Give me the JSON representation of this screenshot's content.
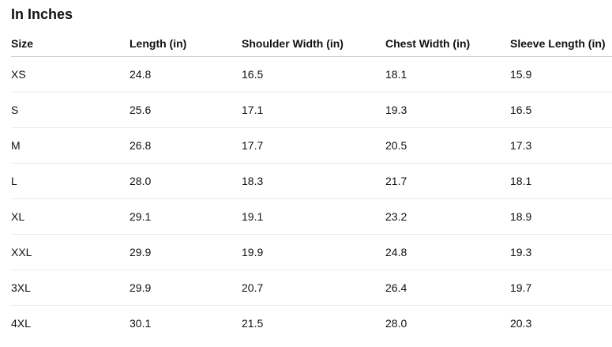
{
  "header": {
    "title": "In Inches"
  },
  "table": {
    "columns": [
      "Size",
      "Length (in)",
      "Shoulder Width (in)",
      "Chest Width (in)",
      "Sleeve Length (in)"
    ],
    "rows": [
      [
        "XS",
        "24.8",
        "16.5",
        "18.1",
        "15.9"
      ],
      [
        "S",
        "25.6",
        "17.1",
        "19.3",
        "16.5"
      ],
      [
        "M",
        "26.8",
        "17.7",
        "20.5",
        "17.3"
      ],
      [
        "L",
        "28.0",
        "18.3",
        "21.7",
        "18.1"
      ],
      [
        "XL",
        "29.1",
        "19.1",
        "23.2",
        "18.9"
      ],
      [
        "XXL",
        "29.9",
        "19.9",
        "24.8",
        "19.3"
      ],
      [
        "3XL",
        "29.9",
        "20.7",
        "26.4",
        "19.7"
      ],
      [
        "4XL",
        "30.1",
        "21.5",
        "28.0",
        "20.3"
      ]
    ]
  }
}
